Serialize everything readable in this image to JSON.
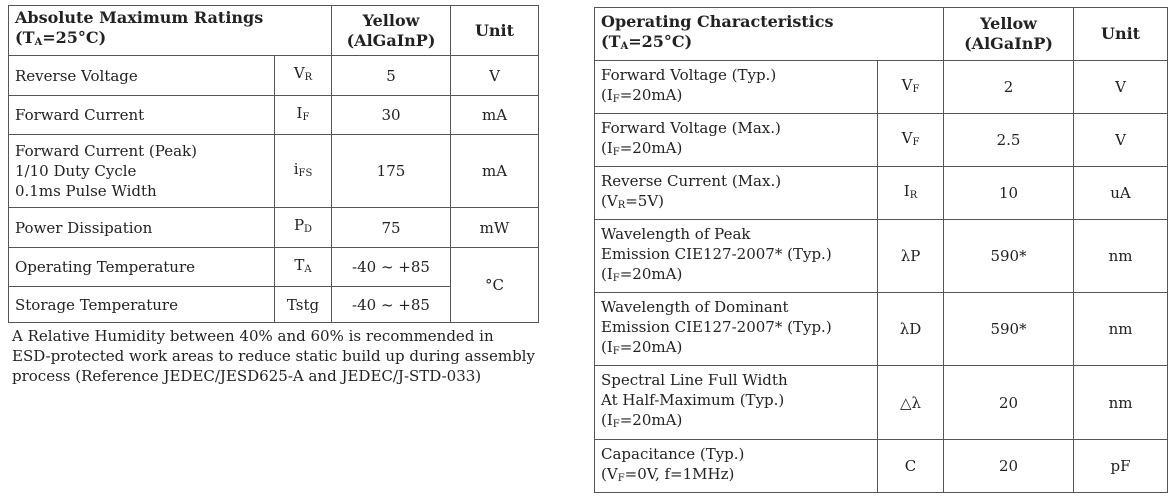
{
  "absolute_max": {
    "header": {
      "title": "Absolute Maximum Ratings",
      "condition_prefix": "(T",
      "condition_sub": "A",
      "condition_suffix": "=25°C)",
      "yellow": "Yellow",
      "material": "(AlGaInP)",
      "unit": "Unit"
    },
    "rows": [
      {
        "param": "Reverse Voltage",
        "sym": "V",
        "sym_sub": "R",
        "value": "5",
        "unit": "V"
      },
      {
        "param": "Forward Current",
        "sym": "I",
        "sym_sub": "F",
        "value": "30",
        "unit": "mA"
      },
      {
        "param": "Forward Current (Peak)\n1/10 Duty Cycle\n0.1ms Pulse Width",
        "sym": "i",
        "sym_sub": "FS",
        "value": "175",
        "unit": "mA"
      },
      {
        "param": "Power Dissipation",
        "sym": "P",
        "sym_sub": "D",
        "value": "75",
        "unit": "mW"
      },
      {
        "param": "Operating Temperature",
        "sym": "T",
        "sym_sub": "A",
        "value": "-40 ~ +85",
        "unit": "°C"
      },
      {
        "param": "Storage Temperature",
        "sym": "Tstg",
        "sym_sub": "",
        "value": "-40 ~ +85"
      }
    ],
    "note": "A Relative Humidity between 40% and 60% is recommended in\nESD-protected work areas to reduce static build up during assembly\nprocess (Reference JEDEC/JESD625-A and JEDEC/J-STD-033)"
  },
  "operating": {
    "header": {
      "title": "Operating Characteristics",
      "condition_prefix": "(T",
      "condition_sub": "A",
      "condition_suffix": "=25°C)",
      "yellow": "Yellow",
      "material": "(AlGaInP)",
      "unit": "Unit"
    },
    "rows": [
      {
        "param": "Forward Voltage (Typ.)",
        "cond_prefix": "(I",
        "cond_sub": "F",
        "cond_suffix": "=20mA)",
        "sym": "V",
        "sym_sub": "F",
        "value": "2",
        "unit": "V"
      },
      {
        "param": "Forward Voltage (Max.)",
        "cond_prefix": "(I",
        "cond_sub": "F",
        "cond_suffix": "=20mA)",
        "sym": "V",
        "sym_sub": "F",
        "value": "2.5",
        "unit": "V"
      },
      {
        "param": "Reverse Current (Max.)",
        "cond_prefix": "(V",
        "cond_sub": "R",
        "cond_suffix": "=5V)",
        "sym": "I",
        "sym_sub": "R",
        "value": "10",
        "unit": "uA"
      },
      {
        "param": "Wavelength of Peak\nEmission  CIE127-2007* (Typ.)",
        "cond_prefix": "(I",
        "cond_sub": "F",
        "cond_suffix": "=20mA)",
        "sym": "λP",
        "sym_sub": "",
        "value": "590*",
        "unit": "nm"
      },
      {
        "param": "Wavelength of Dominant\nEmission  CIE127-2007* (Typ.)",
        "cond_prefix": "(I",
        "cond_sub": "F",
        "cond_suffix": "=20mA)",
        "sym": "λD",
        "sym_sub": "",
        "value": "590*",
        "unit": "nm"
      },
      {
        "param": "Spectral Line Full Width\nAt Half-Maximum (Typ.)",
        "cond_prefix": "(I",
        "cond_sub": "F",
        "cond_suffix": "=20mA)",
        "sym": "△λ",
        "sym_sub": "",
        "value": "20",
        "unit": "nm"
      },
      {
        "param": "Capacitance (Typ.)",
        "cond_prefix": "(V",
        "cond_sub": "F",
        "cond_suffix": "=0V, f=1MHz)",
        "sym": "C",
        "sym_sub": "",
        "value": "20",
        "unit": "pF"
      }
    ]
  }
}
